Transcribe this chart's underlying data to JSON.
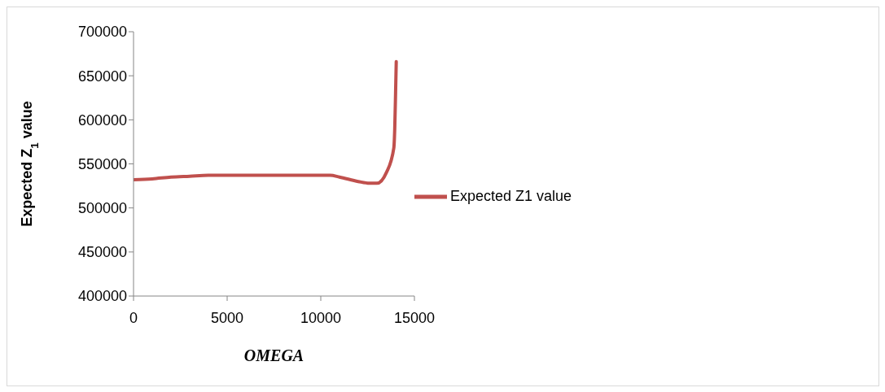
{
  "chart_data": {
    "type": "line",
    "xlabel": "OMEGA",
    "ylabel": "Expected Z$_{1}$ value",
    "x": [
      0,
      1000,
      2000,
      3000,
      4000,
      5000,
      7500,
      10000,
      10500,
      11000,
      12000,
      12600,
      13000,
      13500,
      13900,
      13950,
      13995,
      14030
    ],
    "series": [
      {
        "name": "Expected Z1 value",
        "color": "#c0504d",
        "values": [
          532000,
          533000,
          535000,
          536000,
          537000,
          537000,
          537000,
          537000,
          537000,
          535000,
          530000,
          528000,
          528000,
          540000,
          568000,
          590000,
          631000,
          666000
        ]
      }
    ],
    "xlim": [
      0,
      15000
    ],
    "xticks": [
      0,
      5000,
      10000,
      15000
    ],
    "ylim": [
      400000,
      700000
    ],
    "yticks": [
      400000,
      450000,
      500000,
      550000,
      600000,
      650000,
      700000
    ],
    "grid": false,
    "legend": "right",
    "marker": "none",
    "line_style": "solid"
  }
}
